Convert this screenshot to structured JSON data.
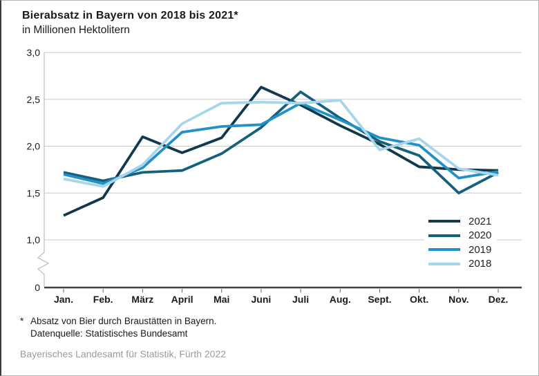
{
  "header": {
    "title": "Bierabsatz in Bayern von 2018 bis 2021*",
    "subtitle": "in Millionen Hektolitern"
  },
  "chart_data": {
    "type": "line",
    "title": "Bierabsatz in Bayern von 2018 bis 2021*",
    "subtitle": "in Millionen Hektolitern",
    "xlabel": "",
    "ylabel": "Millionen Hektoliter",
    "categories": [
      "Jan.",
      "Feb.",
      "März",
      "April",
      "Mai",
      "Juni",
      "Juli",
      "Aug.",
      "Sept.",
      "Okt.",
      "Nov.",
      "Dez."
    ],
    "series": [
      {
        "name": "2021",
        "color": "#12384E",
        "values": [
          1.26,
          1.45,
          2.1,
          1.93,
          2.09,
          2.63,
          2.44,
          2.22,
          2.02,
          1.78,
          1.75,
          1.74
        ]
      },
      {
        "name": "2020",
        "color": "#16607E",
        "values": [
          1.72,
          1.63,
          1.72,
          1.74,
          1.92,
          2.2,
          2.58,
          2.3,
          2.05,
          1.9,
          1.5,
          1.72
        ]
      },
      {
        "name": "2019",
        "color": "#2191C8",
        "values": [
          1.7,
          1.6,
          1.77,
          2.15,
          2.21,
          2.23,
          2.46,
          2.28,
          2.09,
          2.01,
          1.66,
          1.73
        ]
      },
      {
        "name": "2018",
        "color": "#A6D6EB",
        "values": [
          1.65,
          1.57,
          1.8,
          2.24,
          2.46,
          2.47,
          2.46,
          2.49,
          1.96,
          2.08,
          1.76,
          1.69
        ]
      }
    ],
    "ylim": [
      1.0,
      3.0
    ],
    "yaxis": {
      "tick_labels": [
        "3,0",
        "2,5",
        "2,0",
        "1,5",
        "1,0"
      ],
      "tick_values": [
        3.0,
        2.5,
        2.0,
        1.5,
        1.0
      ],
      "zero_label": "0",
      "axis_break": true
    },
    "grid": true,
    "legend_position": "right-middle",
    "colors": {
      "gridline": "#c9c9c9",
      "zero_axis": "#404040",
      "y_axis": "#c2c2c2",
      "tick": "#666666"
    }
  },
  "footnote": {
    "marker": "*",
    "line1": "Absatz von Bier durch Braustätten in Bayern.",
    "line2": "Datenquelle: Statistisches Bundesamt"
  },
  "footer": {
    "credit": "Bayerisches Landesamt für Statistik, Fürth 2022"
  }
}
